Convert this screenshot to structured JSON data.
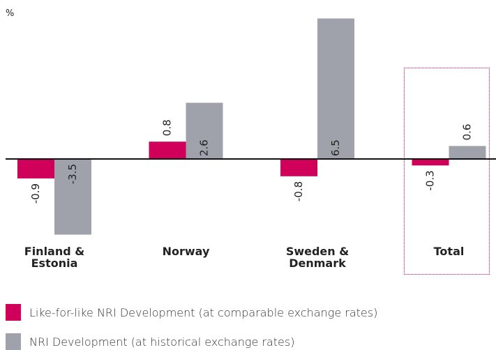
{
  "chart_data": {
    "type": "bar",
    "unit": "%",
    "categories": [
      "Finland & Estonia",
      "Norway",
      "Sweden & Denmark",
      "Total"
    ],
    "series": [
      {
        "name": "Like-for-like NRI Development (at comparable exchange rates)",
        "color": "#d0005a",
        "values": [
          -0.9,
          0.8,
          -0.8,
          -0.3
        ]
      },
      {
        "name": "NRI Development (at historical exchange rates)",
        "color": "#a0a2ab",
        "values": [
          -3.5,
          2.6,
          6.5,
          0.6
        ]
      }
    ]
  }
}
